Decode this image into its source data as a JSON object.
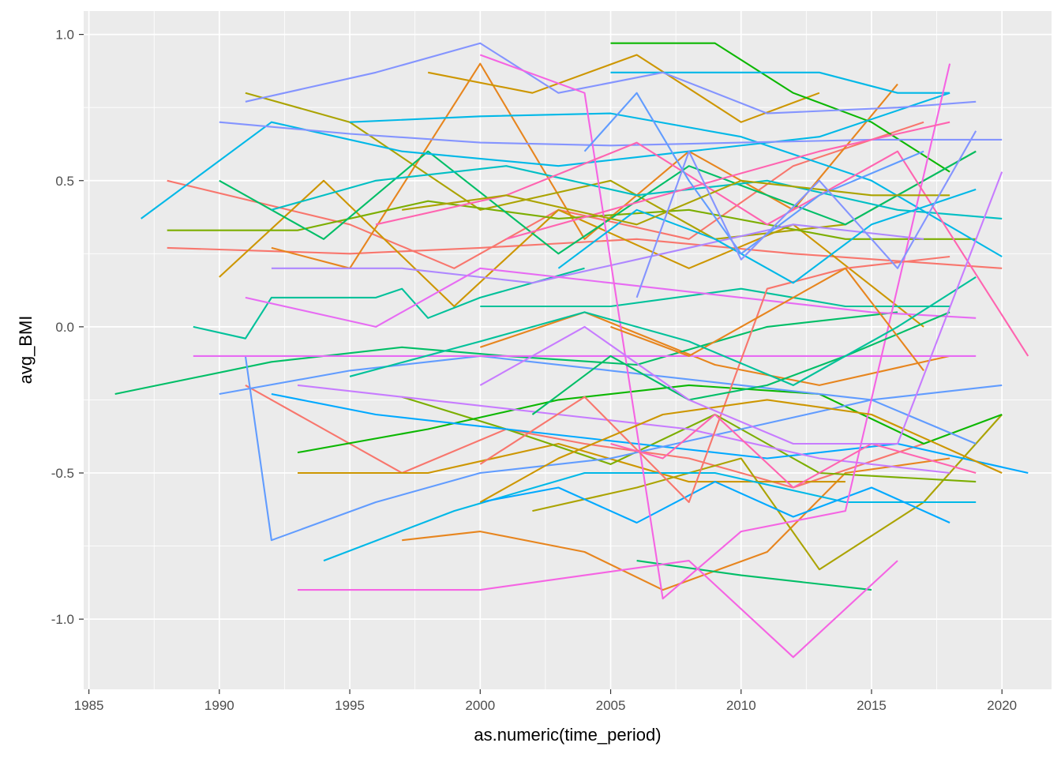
{
  "chart_data": {
    "type": "line",
    "title": "",
    "xlabel": "as.numeric(time_period)",
    "ylabel": "avg_BMI",
    "xlim": [
      1984.8,
      2021.9
    ],
    "ylim": [
      -1.24,
      1.08
    ],
    "x_ticks": [
      1985,
      1990,
      1995,
      2000,
      2005,
      2010,
      2015,
      2020
    ],
    "x_tick_labels": [
      "1985",
      "1990",
      "1995",
      "2000",
      "2005",
      "2010",
      "2015",
      "2020"
    ],
    "y_ticks": [
      -1.0,
      -0.5,
      0.0,
      0.5,
      1.0
    ],
    "y_tick_labels": [
      "-1.0",
      "-0.5",
      "0.0",
      "0.5",
      "1.0"
    ],
    "grid": true,
    "legend": "none",
    "panel_background": "#ebebeb",
    "grid_color": "#ffffff",
    "series": [
      {
        "color": "#F8766D",
        "x": [
          1988,
          1995,
          1999,
          2003,
          2008,
          2012,
          2017
        ],
        "y": [
          0.5,
          0.35,
          0.2,
          0.4,
          0.3,
          0.55,
          0.7
        ]
      },
      {
        "color": "#F8766D",
        "x": [
          1988,
          1995,
          2000,
          2006,
          2012,
          2020
        ],
        "y": [
          0.27,
          0.25,
          0.27,
          0.3,
          0.25,
          0.2
        ]
      },
      {
        "color": "#F8766D",
        "x": [
          1991,
          1997,
          2001,
          2004,
          2008,
          2012,
          2017
        ],
        "y": [
          -0.2,
          -0.5,
          -0.35,
          -0.4,
          -0.45,
          -0.55,
          -0.4
        ]
      },
      {
        "color": "#E7851E",
        "x": [
          1997,
          2000,
          2004,
          2007,
          2011,
          2014,
          2018
        ],
        "y": [
          -0.73,
          -0.7,
          -0.77,
          -0.9,
          -0.77,
          -0.5,
          -0.45
        ]
      },
      {
        "color": "#E7851E",
        "x": [
          1992,
          1995,
          2000,
          2004,
          2008,
          2012,
          2016
        ],
        "y": [
          0.27,
          0.2,
          0.9,
          0.3,
          0.6,
          0.4,
          0.83
        ]
      },
      {
        "color": "#E7851E",
        "x": [
          2000,
          2004,
          2009,
          2013,
          2018
        ],
        "y": [
          -0.07,
          0.05,
          -0.13,
          -0.2,
          -0.1
        ]
      },
      {
        "color": "#CD9600",
        "x": [
          1993,
          1998,
          2003,
          2008,
          2014
        ],
        "y": [
          -0.5,
          -0.5,
          -0.4,
          -0.53,
          -0.53
        ]
      },
      {
        "color": "#CD9600",
        "x": [
          1998,
          2002,
          2006,
          2010,
          2013
        ],
        "y": [
          0.87,
          0.8,
          0.93,
          0.7,
          0.8
        ]
      },
      {
        "color": "#CD9600",
        "x": [
          1990,
          1994,
          1999,
          2003,
          2008,
          2012,
          2017
        ],
        "y": [
          0.17,
          0.5,
          0.07,
          0.4,
          0.2,
          0.35,
          0.0
        ]
      },
      {
        "color": "#ABA300",
        "x": [
          1991,
          1995,
          2000,
          2005,
          2009,
          2014,
          2019
        ],
        "y": [
          0.8,
          0.7,
          0.4,
          0.5,
          0.3,
          0.35,
          0.6
        ]
      },
      {
        "color": "#ABA300",
        "x": [
          2002,
          2006,
          2010,
          2013,
          2017,
          2020
        ],
        "y": [
          -0.63,
          -0.55,
          -0.45,
          -0.83,
          -0.6,
          -0.3
        ]
      },
      {
        "color": "#7CAE00",
        "x": [
          1988,
          1993,
          1998,
          2003,
          2008,
          2014,
          2019
        ],
        "y": [
          0.33,
          0.33,
          0.43,
          0.37,
          0.4,
          0.3,
          0.3
        ]
      },
      {
        "color": "#7CAE00",
        "x": [
          1997,
          2001,
          2005,
          2009,
          2013,
          2019
        ],
        "y": [
          -0.24,
          -0.35,
          -0.47,
          -0.3,
          -0.5,
          -0.53
        ]
      },
      {
        "color": "#0CB702",
        "x": [
          2005,
          2009,
          2012,
          2015,
          2018
        ],
        "y": [
          0.97,
          0.97,
          0.8,
          0.7,
          0.53
        ]
      },
      {
        "color": "#0CB702",
        "x": [
          1993,
          1998,
          2003,
          2008,
          2013,
          2017,
          2020
        ],
        "y": [
          -0.43,
          -0.35,
          -0.25,
          -0.2,
          -0.23,
          -0.4,
          -0.3
        ]
      },
      {
        "color": "#00BE67",
        "x": [
          1986,
          1992,
          1997,
          2001,
          2006,
          2011,
          2016
        ],
        "y": [
          -0.23,
          -0.12,
          -0.07,
          -0.1,
          -0.13,
          0.0,
          0.05
        ]
      },
      {
        "color": "#00BE67",
        "x": [
          2006,
          2010,
          2015
        ],
        "y": [
          -0.8,
          -0.85,
          -0.9
        ]
      },
      {
        "color": "#00BE67",
        "x": [
          1990,
          1994,
          1998,
          2003,
          2008,
          2014,
          2019
        ],
        "y": [
          0.5,
          0.3,
          0.6,
          0.25,
          0.55,
          0.35,
          0.6
        ]
      },
      {
        "color": "#00C19A",
        "x": [
          1989,
          1991,
          1992,
          1996,
          1997,
          1998,
          2000,
          2004
        ],
        "y": [
          0.0,
          -0.04,
          0.1,
          0.1,
          0.13,
          0.03,
          0.1,
          0.2
        ]
      },
      {
        "color": "#00C19A",
        "x": [
          2000,
          2005,
          2010,
          2014,
          2018
        ],
        "y": [
          0.07,
          0.07,
          0.13,
          0.07,
          0.07
        ]
      },
      {
        "color": "#00BFC4",
        "x": [
          1992,
          1996,
          2001,
          2006,
          2011,
          2016,
          2020
        ],
        "y": [
          0.4,
          0.5,
          0.55,
          0.45,
          0.5,
          0.4,
          0.37
        ]
      },
      {
        "color": "#00B8E7",
        "x": [
          1987,
          1992,
          1997,
          2003,
          2008,
          2013,
          2018
        ],
        "y": [
          0.37,
          0.7,
          0.6,
          0.55,
          0.6,
          0.65,
          0.8
        ]
      },
      {
        "color": "#00B8E7",
        "x": [
          1995,
          2000,
          2005,
          2010,
          2015,
          2020
        ],
        "y": [
          0.7,
          0.72,
          0.73,
          0.65,
          0.5,
          0.24
        ]
      },
      {
        "color": "#00B8E7",
        "x": [
          1994,
          1999,
          2004,
          2009,
          2014,
          2019
        ],
        "y": [
          -0.8,
          -0.63,
          -0.5,
          -0.5,
          -0.6,
          -0.6
        ]
      },
      {
        "color": "#00B8E7",
        "x": [
          2005,
          2009,
          2013,
          2016,
          2018
        ],
        "y": [
          0.87,
          0.87,
          0.87,
          0.8,
          0.8
        ]
      },
      {
        "color": "#00A9FF",
        "x": [
          1992,
          1996,
          2001,
          2006,
          2011,
          2016,
          2021
        ],
        "y": [
          -0.23,
          -0.3,
          -0.35,
          -0.4,
          -0.45,
          -0.4,
          -0.5
        ]
      },
      {
        "color": "#00A9FF",
        "x": [
          2000,
          2003,
          2006,
          2009,
          2012,
          2015,
          2018
        ],
        "y": [
          -0.6,
          -0.55,
          -0.67,
          -0.53,
          -0.65,
          -0.55,
          -0.67
        ]
      },
      {
        "color": "#619CFF",
        "x": [
          1991,
          1992,
          1996,
          2000,
          2005,
          2010,
          2015,
          2019
        ],
        "y": [
          -0.1,
          -0.73,
          -0.6,
          -0.5,
          -0.45,
          -0.35,
          -0.25,
          -0.4
        ]
      },
      {
        "color": "#619CFF",
        "x": [
          1990,
          1995,
          2000,
          2005,
          2010,
          2015,
          2020
        ],
        "y": [
          -0.23,
          -0.15,
          -0.1,
          -0.15,
          -0.2,
          -0.25,
          -0.2
        ]
      },
      {
        "color": "#8494FF",
        "x": [
          1990,
          1995,
          2000,
          2005,
          2010,
          2015,
          2020
        ],
        "y": [
          0.7,
          0.66,
          0.63,
          0.62,
          0.63,
          0.64,
          0.64
        ]
      },
      {
        "color": "#8494FF",
        "x": [
          1991,
          1996,
          2000,
          2003,
          2007,
          2011,
          2016,
          2019
        ],
        "y": [
          0.77,
          0.87,
          0.97,
          0.8,
          0.87,
          0.73,
          0.75,
          0.77
        ]
      },
      {
        "color": "#AE87FF",
        "x": [
          1992,
          1997,
          2002,
          2007,
          2012,
          2017
        ],
        "y": [
          0.2,
          0.2,
          0.15,
          0.25,
          0.35,
          0.3
        ]
      },
      {
        "color": "#C77CFF",
        "x": [
          1993,
          1998,
          2003,
          2008,
          2013,
          2018
        ],
        "y": [
          -0.2,
          -0.25,
          -0.3,
          -0.35,
          -0.45,
          -0.5
        ]
      },
      {
        "color": "#E76BF3",
        "x": [
          1991,
          1996,
          2000,
          2005,
          2010,
          2015,
          2019
        ],
        "y": [
          0.1,
          0.0,
          0.2,
          0.15,
          0.1,
          0.05,
          0.03
        ]
      },
      {
        "color": "#E76BF3",
        "x": [
          1989,
          1994,
          1999,
          2004,
          2009,
          2014,
          2019
        ],
        "y": [
          -0.1,
          -0.1,
          -0.1,
          -0.1,
          -0.1,
          -0.1,
          -0.1
        ]
      },
      {
        "color": "#F564E3",
        "x": [
          1993,
          1997,
          2000,
          2004,
          2008,
          2012,
          2016
        ],
        "y": [
          -0.9,
          -0.9,
          -0.9,
          -0.85,
          -0.8,
          -1.13,
          -0.8
        ]
      },
      {
        "color": "#F564E3",
        "x": [
          2000,
          2004,
          2007,
          2010,
          2014,
          2018
        ],
        "y": [
          0.93,
          0.8,
          -0.93,
          -0.7,
          -0.63,
          0.9
        ]
      },
      {
        "color": "#FF64B0",
        "x": [
          2001,
          2005,
          2009,
          2013,
          2018
        ],
        "y": [
          0.3,
          0.4,
          0.5,
          0.6,
          0.7
        ]
      },
      {
        "color": "#FF64B0",
        "x": [
          1996,
          2001,
          2006,
          2011,
          2016,
          2021
        ],
        "y": [
          0.35,
          0.45,
          0.63,
          0.35,
          0.6,
          -0.1
        ]
      },
      {
        "color": "#F8766D",
        "x": [
          2000,
          2004,
          2008,
          2011,
          2014,
          2018
        ],
        "y": [
          -0.47,
          -0.24,
          -0.6,
          0.13,
          0.2,
          0.24
        ]
      },
      {
        "color": "#CD9600",
        "x": [
          2000,
          2003,
          2007,
          2011,
          2015,
          2020
        ],
        "y": [
          -0.6,
          -0.45,
          -0.3,
          -0.25,
          -0.3,
          -0.5
        ]
      },
      {
        "color": "#00BE67",
        "x": [
          2002,
          2005,
          2008,
          2011,
          2014,
          2018
        ],
        "y": [
          -0.3,
          -0.1,
          -0.25,
          -0.2,
          -0.1,
          0.05
        ]
      },
      {
        "color": "#00B8E7",
        "x": [
          2003,
          2006,
          2009,
          2012,
          2015,
          2019
        ],
        "y": [
          0.2,
          0.4,
          0.3,
          0.15,
          0.35,
          0.47
        ]
      },
      {
        "color": "#619CFF",
        "x": [
          2004,
          2006,
          2008,
          2010,
          2013,
          2017
        ],
        "y": [
          0.6,
          0.8,
          0.5,
          0.25,
          0.45,
          0.6
        ]
      },
      {
        "color": "#FF64B0",
        "x": [
          2005,
          2007,
          2009,
          2012,
          2015,
          2019
        ],
        "y": [
          -0.4,
          -0.45,
          -0.3,
          -0.55,
          -0.4,
          -0.5
        ]
      },
      {
        "color": "#E7851E",
        "x": [
          2005,
          2008,
          2011,
          2014,
          2017
        ],
        "y": [
          0.0,
          -0.1,
          0.05,
          0.2,
          -0.15
        ]
      },
      {
        "color": "#ABA300",
        "x": [
          1997,
          2001,
          2006,
          2010,
          2015,
          2018
        ],
        "y": [
          0.4,
          0.45,
          0.35,
          0.5,
          0.45,
          0.45
        ]
      },
      {
        "color": "#00C19A",
        "x": [
          1995,
          2000,
          2004,
          2008,
          2012,
          2016,
          2019
        ],
        "y": [
          -0.17,
          -0.05,
          0.05,
          -0.05,
          -0.2,
          0.0,
          0.17
        ]
      },
      {
        "color": "#C77CFF",
        "x": [
          2000,
          2004,
          2008,
          2012,
          2016,
          2020
        ],
        "y": [
          -0.2,
          0.0,
          -0.25,
          -0.4,
          -0.4,
          0.53
        ]
      },
      {
        "color": "#8494FF",
        "x": [
          2006,
          2008,
          2010,
          2013,
          2016,
          2019
        ],
        "y": [
          0.1,
          0.6,
          0.23,
          0.5,
          0.2,
          0.67
        ]
      }
    ]
  }
}
